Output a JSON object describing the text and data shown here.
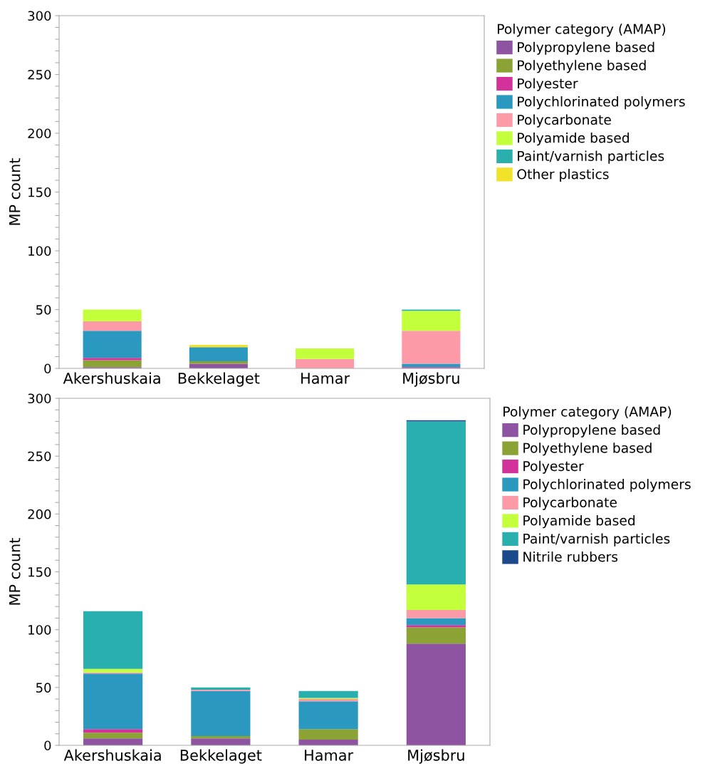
{
  "chart_data": [
    {
      "type": "bar",
      "stacked": true,
      "ylabel": "MP count",
      "legend_title": "Polymer category (AMAP)",
      "legend": "right",
      "grid": false,
      "categories": [
        "Akershuskaia",
        "Bekkelaget",
        "Hamar",
        "Mjøsbru"
      ],
      "ylim": [
        0,
        300
      ],
      "yticks": [
        0,
        {
          "value": 10,
          "label": null
        },
        {
          "value": 20,
          "label": null
        },
        {
          "value": 30,
          "label": null
        },
        {
          "value": 40,
          "label": null
        },
        50,
        {
          "value": 60,
          "label": null
        },
        {
          "value": 70,
          "label": null
        },
        {
          "value": 80,
          "label": null
        },
        {
          "value": 90,
          "label": null
        },
        100,
        {
          "value": 110,
          "label": null
        },
        {
          "value": 120,
          "label": null
        },
        {
          "value": 130,
          "label": null
        },
        {
          "value": 140,
          "label": null
        },
        150,
        {
          "value": 160,
          "label": null
        },
        {
          "value": 170,
          "label": null
        },
        {
          "value": 180,
          "label": null
        },
        {
          "value": 190,
          "label": null
        },
        200,
        {
          "value": 210,
          "label": null
        },
        {
          "value": 220,
          "label": null
        },
        {
          "value": 230,
          "label": null
        },
        {
          "value": 240,
          "label": null
        },
        250,
        {
          "value": 260,
          "label": null
        },
        {
          "value": 270,
          "label": null
        },
        {
          "value": 280,
          "label": null
        },
        {
          "value": 290,
          "label": null
        },
        300
      ],
      "series": [
        {
          "name": "Polypropylene based",
          "color": "#8e53a1",
          "values": [
            1,
            4,
            0,
            0
          ]
        },
        {
          "name": "Polyethylene based",
          "color": "#8ba235",
          "values": [
            6,
            2,
            0,
            0
          ]
        },
        {
          "name": "Polyester",
          "color": "#d3329a",
          "values": [
            2,
            0,
            0,
            1
          ]
        },
        {
          "name": "Polychlorinated polymers",
          "color": "#2a98bf",
          "values": [
            23,
            12,
            0,
            3
          ]
        },
        {
          "name": "Polycarbonate",
          "color": "#fd9aa8",
          "values": [
            8,
            0,
            8,
            28
          ]
        },
        {
          "name": "Polyamide based",
          "color": "#c4ff3c",
          "values": [
            10,
            0,
            9,
            17
          ]
        },
        {
          "name": "Paint/varnish particles",
          "color": "#2aafaf",
          "values": [
            0,
            0,
            0,
            1
          ]
        },
        {
          "name": "Other plastics",
          "color": "#f0e32a",
          "values": [
            0,
            2,
            0,
            0
          ]
        }
      ]
    },
    {
      "type": "bar",
      "stacked": true,
      "ylabel": "MP count",
      "legend_title": "Polymer category (AMAP)",
      "legend": "right",
      "grid": false,
      "categories": [
        "Akershuskaia",
        "Bekkelaget",
        "Hamar",
        "Mjøsbru"
      ],
      "ylim": [
        0,
        300
      ],
      "yticks": [
        0,
        {
          "value": 10,
          "label": null
        },
        {
          "value": 20,
          "label": null
        },
        {
          "value": 30,
          "label": null
        },
        {
          "value": 40,
          "label": null
        },
        50,
        {
          "value": 60,
          "label": null
        },
        {
          "value": 70,
          "label": null
        },
        {
          "value": 80,
          "label": null
        },
        {
          "value": 90,
          "label": null
        },
        100,
        {
          "value": 110,
          "label": null
        },
        {
          "value": 120,
          "label": null
        },
        {
          "value": 130,
          "label": null
        },
        {
          "value": 140,
          "label": null
        },
        150,
        {
          "value": 160,
          "label": null
        },
        {
          "value": 170,
          "label": null
        },
        {
          "value": 180,
          "label": null
        },
        {
          "value": 190,
          "label": null
        },
        200,
        {
          "value": 210,
          "label": null
        },
        {
          "value": 220,
          "label": null
        },
        {
          "value": 230,
          "label": null
        },
        {
          "value": 240,
          "label": null
        },
        250,
        {
          "value": 260,
          "label": null
        },
        {
          "value": 270,
          "label": null
        },
        {
          "value": 280,
          "label": null
        },
        {
          "value": 290,
          "label": null
        },
        300
      ],
      "series": [
        {
          "name": "Polypropylene based",
          "color": "#8e53a1",
          "values": [
            6,
            6,
            5,
            88
          ]
        },
        {
          "name": "Polyethylene based",
          "color": "#8ba235",
          "values": [
            5,
            2,
            9,
            14
          ]
        },
        {
          "name": "Polyester",
          "color": "#d3329a",
          "values": [
            3,
            0,
            0,
            2
          ]
        },
        {
          "name": "Polychlorinated polymers",
          "color": "#2a98bf",
          "values": [
            48,
            39,
            24,
            6
          ]
        },
        {
          "name": "Polycarbonate",
          "color": "#fd9aa8",
          "values": [
            1,
            1,
            2,
            7
          ]
        },
        {
          "name": "Polyamide based",
          "color": "#c4ff3c",
          "values": [
            3,
            0,
            1,
            22
          ]
        },
        {
          "name": "Paint/varnish particles",
          "color": "#2aafaf",
          "values": [
            50,
            2,
            6,
            141
          ]
        },
        {
          "name": "Nitrile rubbers",
          "color": "#1b4a8c",
          "values": [
            0,
            0,
            0,
            1
          ]
        }
      ]
    }
  ]
}
